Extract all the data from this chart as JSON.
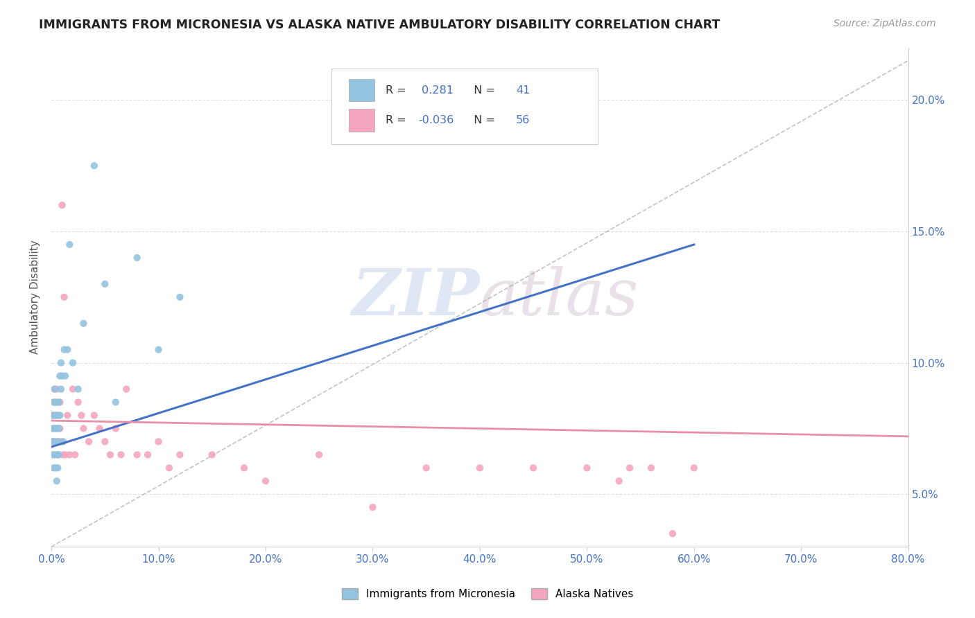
{
  "title": "IMMIGRANTS FROM MICRONESIA VS ALASKA NATIVE AMBULATORY DISABILITY CORRELATION CHART",
  "source": "Source: ZipAtlas.com",
  "ylabel": "Ambulatory Disability",
  "legend1_label": "Immigrants from Micronesia",
  "legend2_label": "Alaska Natives",
  "r1": 0.281,
  "n1": 41,
  "r2": -0.036,
  "n2": 56,
  "blue_scatter_x": [
    0.001,
    0.001,
    0.002,
    0.002,
    0.002,
    0.003,
    0.003,
    0.003,
    0.003,
    0.004,
    0.004,
    0.004,
    0.005,
    0.005,
    0.005,
    0.005,
    0.006,
    0.006,
    0.006,
    0.007,
    0.007,
    0.007,
    0.008,
    0.008,
    0.009,
    0.009,
    0.01,
    0.011,
    0.012,
    0.013,
    0.015,
    0.017,
    0.02,
    0.025,
    0.03,
    0.04,
    0.05,
    0.06,
    0.08,
    0.1,
    0.12
  ],
  "blue_scatter_y": [
    0.075,
    0.065,
    0.08,
    0.07,
    0.06,
    0.085,
    0.075,
    0.065,
    0.09,
    0.08,
    0.07,
    0.06,
    0.085,
    0.075,
    0.065,
    0.055,
    0.08,
    0.07,
    0.06,
    0.085,
    0.075,
    0.065,
    0.095,
    0.08,
    0.1,
    0.09,
    0.095,
    0.07,
    0.105,
    0.095,
    0.105,
    0.145,
    0.1,
    0.09,
    0.115,
    0.175,
    0.13,
    0.085,
    0.14,
    0.105,
    0.125
  ],
  "pink_scatter_x": [
    0.001,
    0.001,
    0.002,
    0.002,
    0.003,
    0.003,
    0.003,
    0.004,
    0.004,
    0.005,
    0.005,
    0.006,
    0.006,
    0.007,
    0.007,
    0.008,
    0.008,
    0.009,
    0.01,
    0.011,
    0.012,
    0.013,
    0.015,
    0.017,
    0.02,
    0.022,
    0.025,
    0.028,
    0.03,
    0.035,
    0.04,
    0.045,
    0.05,
    0.055,
    0.06,
    0.065,
    0.07,
    0.08,
    0.09,
    0.1,
    0.11,
    0.12,
    0.15,
    0.18,
    0.2,
    0.25,
    0.3,
    0.35,
    0.4,
    0.45,
    0.5,
    0.53,
    0.54,
    0.56,
    0.58,
    0.6
  ],
  "pink_scatter_y": [
    0.08,
    0.07,
    0.085,
    0.075,
    0.09,
    0.08,
    0.07,
    0.085,
    0.075,
    0.09,
    0.08,
    0.075,
    0.065,
    0.08,
    0.07,
    0.085,
    0.075,
    0.07,
    0.16,
    0.065,
    0.125,
    0.065,
    0.08,
    0.065,
    0.09,
    0.065,
    0.085,
    0.08,
    0.075,
    0.07,
    0.08,
    0.075,
    0.07,
    0.065,
    0.075,
    0.065,
    0.09,
    0.065,
    0.065,
    0.07,
    0.06,
    0.065,
    0.065,
    0.06,
    0.055,
    0.065,
    0.045,
    0.06,
    0.06,
    0.06,
    0.06,
    0.055,
    0.06,
    0.06,
    0.035,
    0.06
  ],
  "blue_line_x": [
    0.0,
    0.6
  ],
  "blue_line_y": [
    0.068,
    0.145
  ],
  "pink_line_x": [
    0.0,
    0.8
  ],
  "pink_line_y": [
    0.078,
    0.072
  ],
  "dashed_line_x": [
    0.0,
    0.8
  ],
  "dashed_line_y": [
    0.03,
    0.215
  ],
  "watermark_zip": "ZIP",
  "watermark_atlas": "atlas",
  "blue_color": "#94c4e0",
  "pink_color": "#f4a6be",
  "blue_line_color": "#4472c4",
  "pink_line_color": "#e88fa8",
  "label_color": "#4472c4",
  "xmin": 0.0,
  "xmax": 0.8,
  "ymin": 0.03,
  "ymax": 0.22,
  "ytick_vals": [
    0.05,
    0.1,
    0.15,
    0.2
  ],
  "xtick_vals": [
    0.0,
    0.1,
    0.2,
    0.3,
    0.4,
    0.5,
    0.6,
    0.7,
    0.8
  ]
}
